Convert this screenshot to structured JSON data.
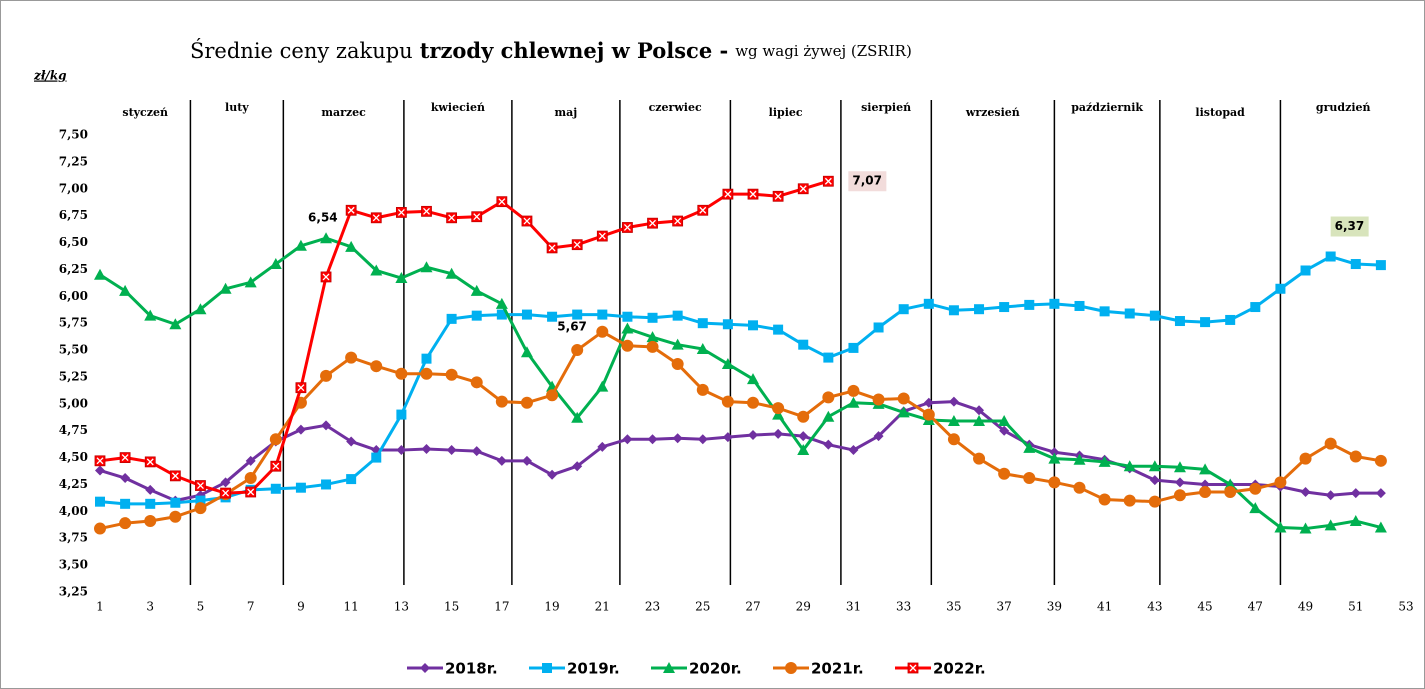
{
  "chart_data": {
    "type": "line",
    "title_parts": [
      "Średnie ceny zakupu",
      "trzody chlewnej w Polsce -",
      "wg wagi żywej (ZSRIR)"
    ],
    "y_label": "zł/kg",
    "months": [
      "styczeń",
      "luty",
      "marzec",
      "kwiecień",
      "maj",
      "czerwiec",
      "lipiec",
      "sierpień",
      "wrzesień",
      "październik",
      "listopad",
      "grudzień"
    ],
    "month_lines": [
      4.6,
      8.3,
      13.1,
      17.4,
      21.7,
      26.1,
      30.5,
      34.1,
      39.0,
      43.2,
      48.0
    ],
    "x": [
      1,
      2,
      3,
      4,
      5,
      6,
      7,
      8,
      9,
      10,
      11,
      12,
      13,
      14,
      15,
      16,
      17,
      18,
      19,
      20,
      21,
      22,
      23,
      24,
      25,
      26,
      27,
      28,
      29,
      30,
      31,
      32,
      33,
      34,
      35,
      36,
      37,
      38,
      39,
      40,
      41,
      42,
      43,
      44,
      45,
      46,
      47,
      48,
      49,
      50,
      51,
      52
    ],
    "xlim": [
      1,
      53
    ],
    "xticks": [
      1,
      3,
      5,
      7,
      9,
      11,
      13,
      15,
      17,
      19,
      21,
      23,
      25,
      27,
      29,
      31,
      33,
      35,
      37,
      39,
      41,
      43,
      45,
      47,
      49,
      51,
      53
    ],
    "ylim": [
      3.25,
      7.5
    ],
    "yticks": [
      {
        "value": 3.25,
        "label": "3,25"
      },
      {
        "value": 3.5,
        "label": "3,50"
      },
      {
        "value": 3.75,
        "label": "3,75"
      },
      {
        "value": 4.0,
        "label": "4,00"
      },
      {
        "value": 4.25,
        "label": "4,25"
      },
      {
        "value": 4.5,
        "label": "4,50"
      },
      {
        "value": 4.75,
        "label": "4,75"
      },
      {
        "value": 5.0,
        "label": "5,00"
      },
      {
        "value": 5.25,
        "label": "5,25"
      },
      {
        "value": 5.5,
        "label": "5,50"
      },
      {
        "value": 5.75,
        "label": "5,75"
      },
      {
        "value": 6.0,
        "label": "6,00"
      },
      {
        "value": 6.25,
        "label": "6,25"
      },
      {
        "value": 6.5,
        "label": "6,50"
      },
      {
        "value": 6.75,
        "label": "6,75"
      },
      {
        "value": 7.0,
        "label": "7,00"
      },
      {
        "value": 7.25,
        "label": "7,25"
      },
      {
        "value": 7.5,
        "label": "7,50"
      }
    ],
    "grid": false,
    "legend": "bottom",
    "series": [
      {
        "name": "2018r.",
        "color": "#7030a0",
        "marker": "diamond",
        "values": [
          4.38,
          4.31,
          4.2,
          4.1,
          4.15,
          4.27,
          4.47,
          4.65,
          4.76,
          4.8,
          4.65,
          4.57,
          4.57,
          4.58,
          4.57,
          4.56,
          4.47,
          4.47,
          4.34,
          4.42,
          4.6,
          4.67,
          4.67,
          4.68,
          4.67,
          4.69,
          4.71,
          4.72,
          4.7,
          4.62,
          4.57,
          4.7,
          4.93,
          5.01,
          5.02,
          4.94,
          4.75,
          4.62,
          4.55,
          4.52,
          4.48,
          4.4,
          4.29,
          4.27,
          4.25,
          4.25,
          4.25,
          4.23,
          4.18,
          4.15,
          4.17,
          4.17
        ]
      },
      {
        "name": "2019r.",
        "color": "#00b0f0",
        "marker": "square",
        "values": [
          4.09,
          4.07,
          4.07,
          4.08,
          4.1,
          4.13,
          4.2,
          4.21,
          4.22,
          4.25,
          4.3,
          4.5,
          4.9,
          5.42,
          5.79,
          5.82,
          5.83,
          5.83,
          5.81,
          5.83,
          5.83,
          5.81,
          5.8,
          5.82,
          5.75,
          5.74,
          5.73,
          5.69,
          5.55,
          5.43,
          5.52,
          5.71,
          5.88,
          5.93,
          5.87,
          5.88,
          5.9,
          5.92,
          5.93,
          5.91,
          5.86,
          5.84,
          5.82,
          5.77,
          5.76,
          5.78,
          5.9,
          6.07,
          6.24,
          6.37,
          6.3,
          6.29
        ],
        "value_labels": [
          null,
          null,
          null,
          null,
          null,
          null,
          null,
          null,
          null,
          null,
          null,
          null,
          null,
          null,
          null,
          null,
          null,
          null,
          null,
          null,
          null,
          null,
          null,
          null,
          null,
          null,
          null,
          null,
          null,
          null,
          null,
          null,
          null,
          null,
          null,
          null,
          null,
          null,
          null,
          null,
          null,
          null,
          null,
          null,
          null,
          null,
          null,
          null,
          null,
          "6,37",
          null,
          null
        ]
      },
      {
        "name": "2020r.",
        "color": "#00b050",
        "marker": "triangle",
        "values": [
          6.2,
          6.05,
          5.82,
          5.74,
          5.88,
          6.07,
          6.13,
          6.3,
          6.47,
          6.54,
          6.46,
          6.24,
          6.17,
          6.27,
          6.21,
          6.05,
          5.93,
          5.48,
          5.16,
          4.87,
          5.16,
          5.7,
          5.62,
          5.55,
          5.51,
          5.37,
          5.23,
          4.9,
          4.57,
          4.88,
          5.01,
          5.0,
          4.92,
          4.85,
          4.84,
          4.84,
          4.84,
          4.59,
          4.49,
          4.48,
          4.46,
          4.42,
          4.42,
          4.41,
          4.39,
          4.25,
          4.03,
          3.85,
          3.84,
          3.87,
          3.91,
          3.85
        ],
        "value_labels": [
          null,
          null,
          null,
          null,
          null,
          null,
          null,
          null,
          null,
          "6,54",
          null,
          null,
          null,
          null,
          null,
          null,
          null,
          null,
          null,
          null,
          null,
          null,
          null,
          null,
          null,
          null,
          null,
          null,
          null,
          null,
          null,
          null,
          null,
          null,
          null,
          null,
          null,
          null,
          null,
          null,
          null,
          null,
          null,
          null,
          null,
          null,
          null,
          null,
          null,
          null,
          null,
          null
        ]
      },
      {
        "name": "2021r.",
        "color": "#e46c0a",
        "marker": "circle",
        "values": [
          3.84,
          3.89,
          3.91,
          3.95,
          4.03,
          4.16,
          4.31,
          4.67,
          5.01,
          5.26,
          5.43,
          5.35,
          5.28,
          5.28,
          5.27,
          5.2,
          5.02,
          5.01,
          5.08,
          5.5,
          5.67,
          5.54,
          5.53,
          5.37,
          5.13,
          5.02,
          5.01,
          4.96,
          4.88,
          5.06,
          5.12,
          5.04,
          5.05,
          4.9,
          4.67,
          4.49,
          4.35,
          4.31,
          4.27,
          4.22,
          4.11,
          4.1,
          4.09,
          4.15,
          4.18,
          4.18,
          4.21,
          4.27,
          4.49,
          4.63,
          4.51,
          4.47
        ],
        "value_labels": [
          null,
          null,
          null,
          null,
          null,
          null,
          null,
          null,
          null,
          null,
          null,
          null,
          null,
          null,
          null,
          null,
          null,
          null,
          null,
          null,
          "5,67",
          null,
          null,
          null,
          null,
          null,
          null,
          null,
          null,
          null,
          null,
          null,
          null,
          null,
          null,
          null,
          null,
          null,
          null,
          null,
          null,
          null,
          null,
          null,
          null,
          null,
          null,
          null,
          null,
          null,
          null,
          null
        ]
      },
      {
        "name": "2022r.",
        "color": "#ff0000",
        "marker": "xsquare",
        "values": [
          4.47,
          4.5,
          4.46,
          4.33,
          4.24,
          4.17,
          4.18,
          4.42,
          5.15,
          6.18,
          6.8,
          6.73,
          6.78,
          6.79,
          6.73,
          6.74,
          6.88,
          6.7,
          6.45,
          6.48,
          6.56,
          6.64,
          6.68,
          6.7,
          6.8,
          6.95,
          6.95,
          6.93,
          7.0,
          7.07,
          null,
          null,
          null,
          null,
          null,
          null,
          null,
          null,
          null,
          null,
          null,
          null,
          null,
          null,
          null,
          null,
          null,
          null,
          null,
          null,
          null,
          null
        ],
        "value_labels": [
          null,
          null,
          null,
          null,
          null,
          null,
          null,
          null,
          null,
          null,
          null,
          null,
          null,
          null,
          null,
          null,
          null,
          null,
          null,
          null,
          null,
          null,
          null,
          null,
          null,
          null,
          null,
          null,
          null,
          "7,07",
          null,
          null,
          null,
          null,
          null,
          null,
          null,
          null,
          null,
          null,
          null,
          null,
          null,
          null,
          null,
          null,
          null,
          null,
          null,
          null,
          null,
          null
        ]
      }
    ]
  }
}
